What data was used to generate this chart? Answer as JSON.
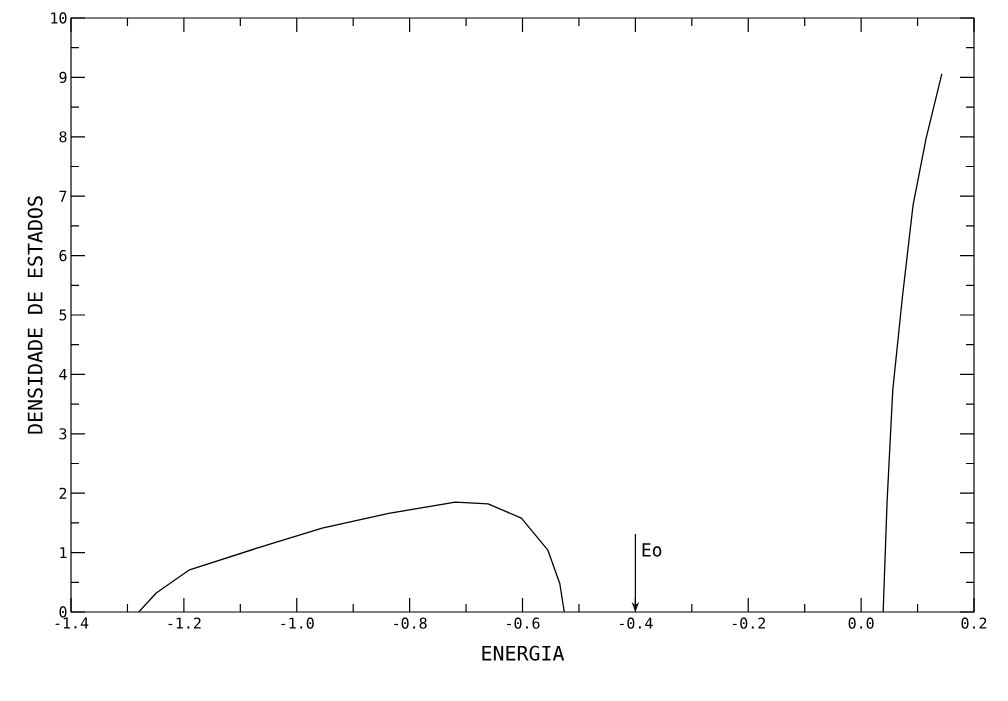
{
  "chart_data": {
    "type": "line",
    "xlabel": "ENERGIA",
    "ylabel": "DENSIDADE DE ESTADOS",
    "series": [
      {
        "color": "#000000",
        "x": [
          -1.28,
          -1.249,
          -1.19,
          -1.072,
          -0.955,
          -0.837,
          -0.719,
          -0.661,
          -0.602,
          -0.555,
          -0.534,
          -0.526
        ],
        "values": [
          0,
          0.32,
          0.71,
          1.07,
          1.41,
          1.66,
          1.85,
          1.82,
          1.58,
          1.04,
          0.48,
          0
        ]
      },
      {
        "color": "#000000",
        "x": [
          0.039,
          0.046,
          0.056,
          0.073,
          0.092,
          0.115,
          0.143
        ],
        "values": [
          0,
          1.86,
          3.73,
          5.29,
          6.85,
          7.97,
          9.06
        ]
      }
    ],
    "xlim": [
      -1.4,
      0.2
    ],
    "ylim": [
      0,
      10
    ],
    "xticks": [
      -1.4,
      -1.2,
      {
        "value": -1.0,
        "label": "-1.0"
      },
      -0.8,
      -0.6,
      -0.4,
      -0.2,
      {
        "value": 0.0,
        "label": "0.0"
      },
      0.2
    ],
    "yticks": [
      0,
      1,
      2,
      3,
      4,
      5,
      6,
      7,
      8,
      9,
      10
    ],
    "annotations": [
      "Eo"
    ],
    "marker": "none",
    "line_style": "solid"
  }
}
